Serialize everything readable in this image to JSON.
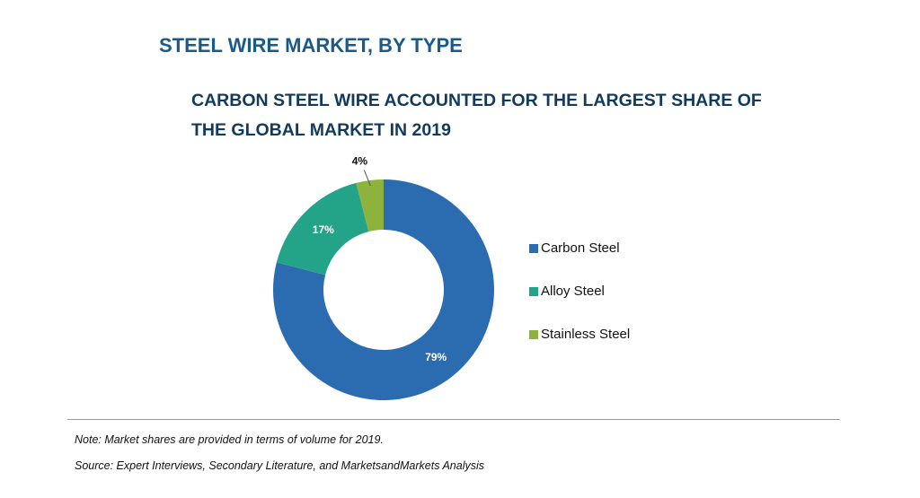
{
  "header": {
    "title": "STEEL WIRE MARKET, BY TYPE",
    "subtitle_line1": "CARBON STEEL WIRE ACCOUNTED FOR THE LARGEST SHARE OF",
    "subtitle_line2": "THE GLOBAL MARKET IN 2019"
  },
  "chart_data": {
    "type": "pie",
    "donut": true,
    "categories": [
      "Carbon Steel",
      "Alloy Steel",
      "Stainless Steel"
    ],
    "values": [
      79,
      17,
      4
    ],
    "labels": [
      "79%",
      "17%",
      "4%"
    ],
    "colors": [
      "#2b6cb0",
      "#23a387",
      "#8db33c"
    ],
    "legend_position": "right"
  },
  "footer": {
    "note": "Note: Market shares are provided in terms of volume for 2019.",
    "source": "Source: Expert Interviews, Secondary Literature, and MarketsandMarkets Analysis"
  }
}
